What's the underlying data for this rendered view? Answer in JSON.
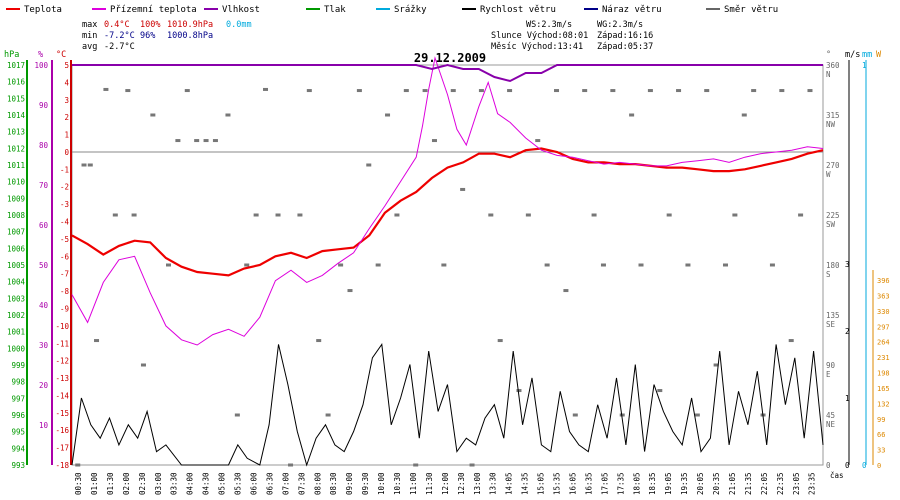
{
  "chart_data": {
    "type": "line",
    "title": "29.12.2009",
    "legend": [
      {
        "label": "Teplota",
        "color": "#ee0000"
      },
      {
        "label": "Přízemní teplota",
        "color": "#dd00dd"
      },
      {
        "label": "Vlhkost",
        "color": "#8800aa"
      },
      {
        "label": "Tlak",
        "color": "#009900"
      },
      {
        "label": "Srážky",
        "color": "#00aadd"
      },
      {
        "label": "Rychlost větru",
        "color": "#000000"
      },
      {
        "label": "Náraz větru",
        "color": "#000088"
      },
      {
        "label": "Směr větru",
        "color": "#666666"
      }
    ],
    "stats": {
      "max_label": "max",
      "max_temp": "0.4°C",
      "max_hum": "100%",
      "max_press": "1010.9hPa",
      "max_rain": "0.0mm",
      "min_label": "min",
      "min_temp": "-7.2°C",
      "min_hum": "96%",
      "min_press": "1000.8hPa",
      "avg_label": "avg",
      "avg_temp": "-2.7°C"
    },
    "info": {
      "ws": "WS:2.3m/s",
      "wg": "WG:2.3m/s",
      "sun_rise": "Slunce Východ:08:01",
      "sun_set": "Západ:16:16",
      "moon_rise": "Měsíc Východ:13:41",
      "moon_set": "Západ:05:37"
    },
    "axes": {
      "hpa_label": "hPa",
      "pct_label": "%",
      "temp_label": "°C",
      "deg_label": "°",
      "ms_label": "m/s",
      "mm_label": "mm",
      "w_label": "W",
      "time_label": "čas",
      "hpa_ticks": [
        "1017",
        "1016",
        "1015",
        "1014",
        "1013",
        "1012",
        "1011",
        "1010",
        "1009",
        "1008",
        "1007",
        "1006",
        "1005",
        "1004",
        "1003",
        "1002",
        "1001",
        "1000",
        "999",
        "998",
        "997",
        "996",
        "995",
        "994",
        "993"
      ],
      "pct_ticks": [
        "100",
        "90",
        "80",
        "70",
        "60",
        "50",
        "40",
        "30",
        "20",
        "10"
      ],
      "temp_ticks": [
        "5",
        "4",
        "3",
        "2",
        "1",
        "0",
        "-1",
        "-2",
        "-3",
        "-4",
        "-5",
        "-6",
        "-7",
        "-8",
        "-9",
        "-10",
        "-11",
        "-12",
        "-13",
        "-14",
        "-15",
        "-16",
        "-17",
        "-18"
      ],
      "deg_ticks": [
        {
          "v": "360",
          "d": "N"
        },
        {
          "v": "315",
          "d": "NW"
        },
        {
          "v": "270",
          "d": "W"
        },
        {
          "v": "225",
          "d": "SW"
        },
        {
          "v": "180",
          "d": "S"
        },
        {
          "v": "135",
          "d": "SE"
        },
        {
          "v": "90",
          "d": "E"
        },
        {
          "v": "45",
          "d": "NE"
        },
        {
          "v": "0",
          "d": ""
        }
      ],
      "ms_ticks": [
        "3",
        "2",
        "1",
        "0"
      ],
      "mm_ticks": [
        "1",
        "0"
      ],
      "w_ticks": [
        "396",
        "363",
        "330",
        "297",
        "264",
        "231",
        "198",
        "165",
        "132",
        "99",
        "66",
        "33",
        "0"
      ],
      "time_ticks": [
        "00:30",
        "01:00",
        "01:30",
        "02:00",
        "02:30",
        "03:00",
        "03:30",
        "04:00",
        "04:30",
        "05:00",
        "05:30",
        "06:00",
        "06:30",
        "07:00",
        "07:30",
        "08:00",
        "08:30",
        "09:00",
        "09:30",
        "10:00",
        "10:30",
        "11:00",
        "11:30",
        "12:00",
        "12:30",
        "13:00",
        "13:30",
        "14:05",
        "14:35",
        "15:05",
        "15:35",
        "16:05",
        "16:35",
        "17:05",
        "17:35",
        "18:05",
        "18:35",
        "19:05",
        "19:35",
        "20:05",
        "20:35",
        "21:05",
        "21:35",
        "22:05",
        "22:35",
        "23:05",
        "23:35"
      ]
    },
    "temp_range": [
      -18,
      5
    ],
    "series": [
      {
        "name": "Teplota",
        "unit": "°C",
        "x_hours": [
          0,
          0.5,
          1,
          1.5,
          2,
          2.5,
          3,
          3.5,
          4,
          4.5,
          5,
          5.5,
          6,
          6.5,
          7,
          7.5,
          8,
          8.5,
          9,
          9.5,
          10,
          10.5,
          11,
          11.5,
          12,
          12.5,
          13,
          13.5,
          14,
          14.5,
          15,
          15.5,
          16,
          16.5,
          17,
          17.5,
          18,
          18.5,
          19,
          19.5,
          20,
          20.5,
          21,
          21.5,
          22,
          22.5,
          23,
          23.5,
          24
        ],
        "values": [
          -4.8,
          -5.3,
          -5.9,
          -5.4,
          -5.1,
          -5.2,
          -6.1,
          -6.6,
          -6.9,
          -7.0,
          -7.1,
          -6.7,
          -6.5,
          -6.0,
          -5.8,
          -6.1,
          -5.7,
          -5.6,
          -5.5,
          -4.8,
          -3.5,
          -2.8,
          -2.3,
          -1.5,
          -0.9,
          -0.6,
          -0.1,
          -0.1,
          -0.3,
          0.1,
          0.2,
          0.0,
          -0.4,
          -0.6,
          -0.6,
          -0.7,
          -0.7,
          -0.8,
          -0.9,
          -0.9,
          -1.0,
          -1.1,
          -1.1,
          -1.0,
          -0.8,
          -0.6,
          -0.4,
          -0.1,
          0.1
        ]
      },
      {
        "name": "Přízemní teplota",
        "unit": "°C",
        "x_hours": [
          0,
          0.5,
          1,
          1.5,
          2,
          2.5,
          3,
          3.5,
          4,
          4.5,
          5,
          5.5,
          6,
          6.5,
          7,
          7.5,
          8,
          8.5,
          9,
          9.5,
          10,
          10.5,
          11,
          11.2,
          11.4,
          11.6,
          12,
          12.3,
          12.6,
          13,
          13.3,
          13.6,
          14,
          14.5,
          15,
          15.5,
          16,
          16.5,
          17,
          17.5,
          18,
          18.5,
          19,
          19.5,
          20,
          20.5,
          21,
          21.5,
          22,
          22.5,
          23,
          23.5,
          24
        ],
        "values": [
          -8.2,
          -9.8,
          -7.5,
          -6.2,
          -6.0,
          -8.1,
          -10.0,
          -10.8,
          -11.1,
          -10.5,
          -10.2,
          -10.6,
          -9.5,
          -7.4,
          -6.8,
          -7.5,
          -7.1,
          -6.4,
          -5.8,
          -4.4,
          -3.1,
          -1.7,
          -0.3,
          1.5,
          3.6,
          5.4,
          3.3,
          1.3,
          0.4,
          2.6,
          4.0,
          2.2,
          1.7,
          0.8,
          0.1,
          -0.2,
          -0.3,
          -0.5,
          -0.7,
          -0.6,
          -0.7,
          -0.8,
          -0.8,
          -0.6,
          -0.5,
          -0.4,
          -0.6,
          -0.3,
          -0.1,
          0.0,
          0.1,
          0.3,
          0.2
        ]
      },
      {
        "name": "Vlhkost",
        "unit": "%",
        "x_hours": [
          0,
          10.5,
          11,
          11.5,
          12,
          12.5,
          13,
          13.5,
          14,
          14.5,
          15,
          15.5,
          24
        ],
        "values": [
          100,
          100,
          100,
          99,
          100,
          99,
          99,
          97,
          96,
          98,
          98,
          100,
          100
        ]
      },
      {
        "name": "Rychlost větru",
        "unit": "m/s",
        "x_hours": [
          0,
          0.3,
          0.6,
          0.9,
          1.2,
          1.5,
          1.8,
          2.1,
          2.4,
          2.7,
          3.0,
          3.5,
          4,
          4.5,
          5,
          5.3,
          5.6,
          6,
          6.3,
          6.6,
          6.9,
          7.2,
          7.5,
          7.8,
          8.1,
          8.4,
          8.7,
          9,
          9.3,
          9.6,
          9.9,
          10.2,
          10.5,
          10.8,
          11.1,
          11.4,
          11.7,
          12,
          12.3,
          12.6,
          12.9,
          13.2,
          13.5,
          13.8,
          14.1,
          14.4,
          14.7,
          15,
          15.3,
          15.6,
          15.9,
          16.2,
          16.5,
          16.8,
          17.1,
          17.4,
          17.7,
          18,
          18.3,
          18.6,
          18.9,
          19.2,
          19.5,
          19.8,
          20.1,
          20.4,
          20.7,
          21,
          21.3,
          21.6,
          21.9,
          22.2,
          22.5,
          22.8,
          23.1,
          23.4,
          23.7,
          24
        ],
        "values": [
          0,
          1.0,
          0.6,
          0.4,
          0.7,
          0.3,
          0.6,
          0.4,
          0.8,
          0.2,
          0.3,
          0,
          0,
          0,
          0,
          0.3,
          0.1,
          0,
          0.6,
          1.8,
          1.2,
          0.5,
          0,
          0.4,
          0.6,
          0.3,
          0.2,
          0.5,
          0.9,
          1.6,
          1.8,
          0.6,
          1.0,
          1.5,
          0.4,
          1.7,
          0.8,
          1.2,
          0.2,
          0.4,
          0.3,
          0.7,
          0.9,
          0.4,
          1.7,
          0.6,
          1.3,
          0.3,
          0.2,
          1.1,
          0.5,
          0.3,
          0.2,
          0.9,
          0.4,
          1.3,
          0.3,
          1.5,
          0.2,
          1.2,
          0.8,
          0.5,
          0.3,
          1.0,
          0.2,
          0.4,
          1.7,
          0.3,
          1.1,
          0.6,
          1.4,
          0.3,
          1.8,
          0.9,
          1.6,
          0.4,
          1.7,
          0.3
        ]
      }
    ],
    "direction_marks": [
      {
        "h": 0.2,
        "deg": 0
      },
      {
        "h": 0.4,
        "deg": 270
      },
      {
        "h": 0.6,
        "deg": 270
      },
      {
        "h": 0.8,
        "deg": 112
      },
      {
        "h": 1.1,
        "deg": 338
      },
      {
        "h": 1.4,
        "deg": 225
      },
      {
        "h": 1.8,
        "deg": 337
      },
      {
        "h": 2.0,
        "deg": 225
      },
      {
        "h": 2.3,
        "deg": 90
      },
      {
        "h": 2.6,
        "deg": 315
      },
      {
        "h": 3.1,
        "deg": 180
      },
      {
        "h": 3.4,
        "deg": 292
      },
      {
        "h": 3.7,
        "deg": 337
      },
      {
        "h": 4.0,
        "deg": 292
      },
      {
        "h": 4.3,
        "deg": 292
      },
      {
        "h": 4.6,
        "deg": 292
      },
      {
        "h": 5.0,
        "deg": 315
      },
      {
        "h": 5.3,
        "deg": 45
      },
      {
        "h": 5.6,
        "deg": 180
      },
      {
        "h": 5.9,
        "deg": 225
      },
      {
        "h": 6.2,
        "deg": 338
      },
      {
        "h": 6.6,
        "deg": 225
      },
      {
        "h": 7.0,
        "deg": 0
      },
      {
        "h": 7.3,
        "deg": 225
      },
      {
        "h": 7.6,
        "deg": 337
      },
      {
        "h": 7.9,
        "deg": 112
      },
      {
        "h": 8.2,
        "deg": 45
      },
      {
        "h": 8.6,
        "deg": 180
      },
      {
        "h": 8.9,
        "deg": 157
      },
      {
        "h": 9.2,
        "deg": 337
      },
      {
        "h": 9.5,
        "deg": 270
      },
      {
        "h": 9.8,
        "deg": 180
      },
      {
        "h": 10.1,
        "deg": 315
      },
      {
        "h": 10.4,
        "deg": 225
      },
      {
        "h": 10.7,
        "deg": 337
      },
      {
        "h": 11.0,
        "deg": 0
      },
      {
        "h": 11.3,
        "deg": 337
      },
      {
        "h": 11.6,
        "deg": 292
      },
      {
        "h": 11.9,
        "deg": 180
      },
      {
        "h": 12.2,
        "deg": 337
      },
      {
        "h": 12.5,
        "deg": 248
      },
      {
        "h": 12.8,
        "deg": 0
      },
      {
        "h": 13.1,
        "deg": 337
      },
      {
        "h": 13.4,
        "deg": 225
      },
      {
        "h": 13.7,
        "deg": 112
      },
      {
        "h": 14.0,
        "deg": 337
      },
      {
        "h": 14.3,
        "deg": 67
      },
      {
        "h": 14.6,
        "deg": 225
      },
      {
        "h": 14.9,
        "deg": 292
      },
      {
        "h": 15.2,
        "deg": 180
      },
      {
        "h": 15.5,
        "deg": 337
      },
      {
        "h": 15.8,
        "deg": 157
      },
      {
        "h": 16.1,
        "deg": 45
      },
      {
        "h": 16.4,
        "deg": 337
      },
      {
        "h": 16.7,
        "deg": 225
      },
      {
        "h": 17.0,
        "deg": 180
      },
      {
        "h": 17.3,
        "deg": 337
      },
      {
        "h": 17.6,
        "deg": 45
      },
      {
        "h": 17.9,
        "deg": 315
      },
      {
        "h": 18.2,
        "deg": 180
      },
      {
        "h": 18.5,
        "deg": 337
      },
      {
        "h": 18.8,
        "deg": 67
      },
      {
        "h": 19.1,
        "deg": 225
      },
      {
        "h": 19.4,
        "deg": 337
      },
      {
        "h": 19.7,
        "deg": 180
      },
      {
        "h": 20.0,
        "deg": 45
      },
      {
        "h": 20.3,
        "deg": 337
      },
      {
        "h": 20.6,
        "deg": 90
      },
      {
        "h": 20.9,
        "deg": 180
      },
      {
        "h": 21.2,
        "deg": 225
      },
      {
        "h": 21.5,
        "deg": 315
      },
      {
        "h": 21.8,
        "deg": 337
      },
      {
        "h": 22.1,
        "deg": 45
      },
      {
        "h": 22.4,
        "deg": 180
      },
      {
        "h": 22.7,
        "deg": 337
      },
      {
        "h": 23.0,
        "deg": 112
      },
      {
        "h": 23.3,
        "deg": 225
      },
      {
        "h": 23.6,
        "deg": 337
      }
    ]
  }
}
